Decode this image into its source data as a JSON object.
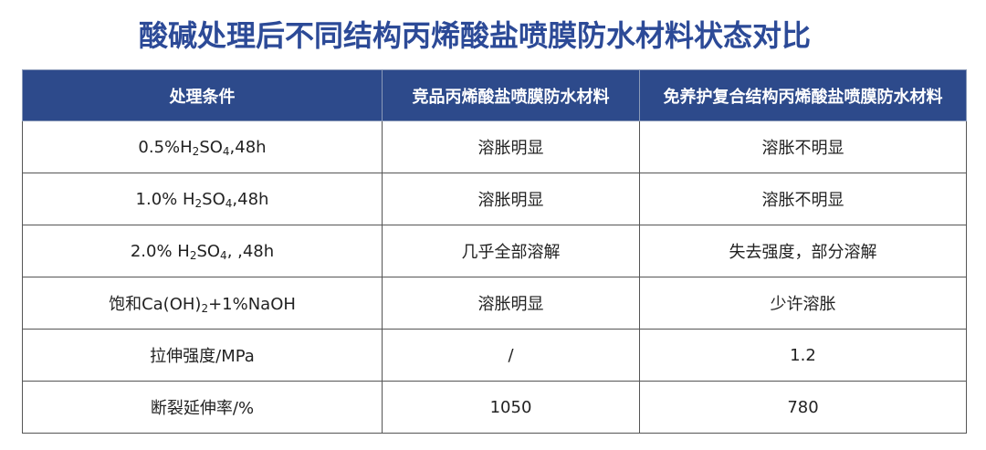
{
  "title": "酸碱处理后不同结构丙烯酸盐喷膜防水材料状态对比",
  "colors": {
    "header_bg": "#2d4a8b",
    "title": "#2c4a97"
  },
  "table": {
    "headers": [
      "处理条件",
      "竞品丙烯酸盐喷膜防水材料",
      "免养护复合结构丙烯酸盐喷膜防水材料"
    ],
    "rows": [
      {
        "condition": [
          {
            "t": "0.5%H"
          },
          {
            "t": "2",
            "sub": true
          },
          {
            "t": "SO"
          },
          {
            "t": "4",
            "sub": true
          },
          {
            "t": ",48h"
          }
        ],
        "competitor": "溶胀明显",
        "composite": "溶胀不明显"
      },
      {
        "condition": [
          {
            "t": "1.0% H"
          },
          {
            "t": "2",
            "sub": true
          },
          {
            "t": "SO"
          },
          {
            "t": "4",
            "sub": true
          },
          {
            "t": ",48h"
          }
        ],
        "competitor": "溶胀明显",
        "composite": "溶胀不明显"
      },
      {
        "condition": [
          {
            "t": "2.0% H"
          },
          {
            "t": "2",
            "sub": true
          },
          {
            "t": "SO"
          },
          {
            "t": "4",
            "sub": true
          },
          {
            "t": ", ,48h"
          }
        ],
        "competitor": "几乎全部溶解",
        "composite": "失去强度，部分溶解"
      },
      {
        "condition": [
          {
            "t": "饱和Ca(OH)"
          },
          {
            "t": "2",
            "sub": true
          },
          {
            "t": "+1%NaOH"
          }
        ],
        "competitor": "溶胀明显",
        "composite": "少许溶胀"
      },
      {
        "condition": [
          {
            "t": "拉伸强度/MPa"
          }
        ],
        "competitor": "/",
        "composite": "1.2"
      },
      {
        "condition": [
          {
            "t": "断裂延伸率/%"
          }
        ],
        "competitor": "1050",
        "composite": "780"
      }
    ]
  }
}
